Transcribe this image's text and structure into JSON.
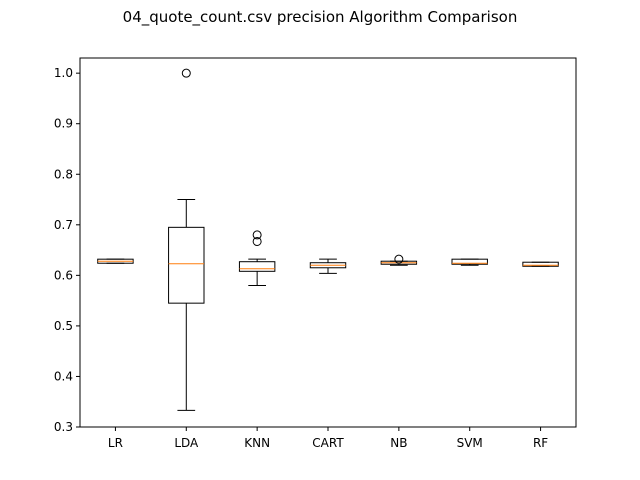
{
  "chart_data": {
    "type": "box",
    "title": "04_quote_count.csv precision Algorithm Comparison",
    "categories": [
      "LR",
      "LDA",
      "KNN",
      "CART",
      "NB",
      "SVM",
      "RF"
    ],
    "ylim": [
      0.3,
      1.03
    ],
    "yticks": [
      0.3,
      0.4,
      0.5,
      0.6,
      0.7,
      0.8,
      0.9,
      1.0
    ],
    "ytick_labels": [
      "0.3",
      "0.4",
      "0.5",
      "0.6",
      "0.7",
      "0.8",
      "0.9",
      "1.0"
    ],
    "grid": false,
    "colors": {
      "median": "#ff7f0e",
      "box": "#000000",
      "background": "#ffffff"
    },
    "boxes": [
      {
        "label": "LR",
        "whisker_low": 0.624,
        "q1": 0.624,
        "median": 0.628,
        "q3": 0.632,
        "whisker_high": 0.632,
        "outliers": []
      },
      {
        "label": "LDA",
        "whisker_low": 0.333,
        "q1": 0.545,
        "median": 0.623,
        "q3": 0.695,
        "whisker_high": 0.75,
        "outliers": [
          1.0
        ]
      },
      {
        "label": "KNN",
        "whisker_low": 0.58,
        "q1": 0.608,
        "median": 0.613,
        "q3": 0.627,
        "whisker_high": 0.632,
        "outliers": [
          0.667,
          0.68
        ]
      },
      {
        "label": "CART",
        "whisker_low": 0.604,
        "q1": 0.615,
        "median": 0.62,
        "q3": 0.625,
        "whisker_high": 0.632,
        "outliers": []
      },
      {
        "label": "NB",
        "whisker_low": 0.62,
        "q1": 0.622,
        "median": 0.625,
        "q3": 0.628,
        "whisker_high": 0.628,
        "outliers": [
          0.632
        ]
      },
      {
        "label": "SVM",
        "whisker_low": 0.62,
        "q1": 0.622,
        "median": 0.624,
        "q3": 0.632,
        "whisker_high": 0.632,
        "outliers": []
      },
      {
        "label": "RF",
        "whisker_low": 0.618,
        "q1": 0.618,
        "median": 0.62,
        "q3": 0.626,
        "whisker_high": 0.626,
        "outliers": []
      }
    ]
  }
}
